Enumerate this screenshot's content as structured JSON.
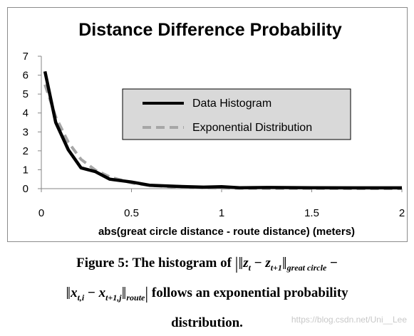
{
  "chart_data": {
    "type": "line",
    "title": "Distance Difference Probability",
    "xlabel": "abs(great circle distance - route distance)  (meters)",
    "ylabel": "",
    "xlim": [
      0,
      2
    ],
    "ylim": [
      0,
      7
    ],
    "x_ticks": [
      "0",
      "0.5",
      "1",
      "1.5",
      "2"
    ],
    "y_ticks": [
      "0",
      "1",
      "2",
      "3",
      "4",
      "5",
      "6",
      "7"
    ],
    "grid": false,
    "legend": "center-right",
    "series": [
      {
        "name": "Data Histogram",
        "color": "#000000",
        "style": "solid",
        "x": [
          0.02,
          0.08,
          0.15,
          0.22,
          0.3,
          0.38,
          0.5,
          0.6,
          0.75,
          0.9,
          1.0,
          1.1,
          1.25,
          1.5,
          1.75,
          2.0
        ],
        "y": [
          6.2,
          3.5,
          2.05,
          1.1,
          0.9,
          0.5,
          0.35,
          0.18,
          0.12,
          0.08,
          0.1,
          0.05,
          0.06,
          0.05,
          0.04,
          0.04
        ]
      },
      {
        "name": "Exponential Distribution",
        "color": "#a6a6a6",
        "style": "dashed",
        "x": [
          0.02,
          0.08,
          0.15,
          0.22,
          0.3,
          0.38,
          0.5,
          0.6,
          0.75,
          0.9,
          1.0,
          1.1,
          1.25,
          1.5,
          1.75,
          2.0
        ],
        "y": [
          5.5,
          3.8,
          2.45,
          1.55,
          0.98,
          0.62,
          0.3,
          0.17,
          0.08,
          0.04,
          0.03,
          0.02,
          0.01,
          0.01,
          0.0,
          0.0
        ]
      }
    ]
  },
  "caption": {
    "prefix": "Figure 5: The histogram of",
    "follows": "follows an exponential probability",
    "distribution": "distribution."
  },
  "watermark": "https://blog.csdn.net/Uni__Lee"
}
